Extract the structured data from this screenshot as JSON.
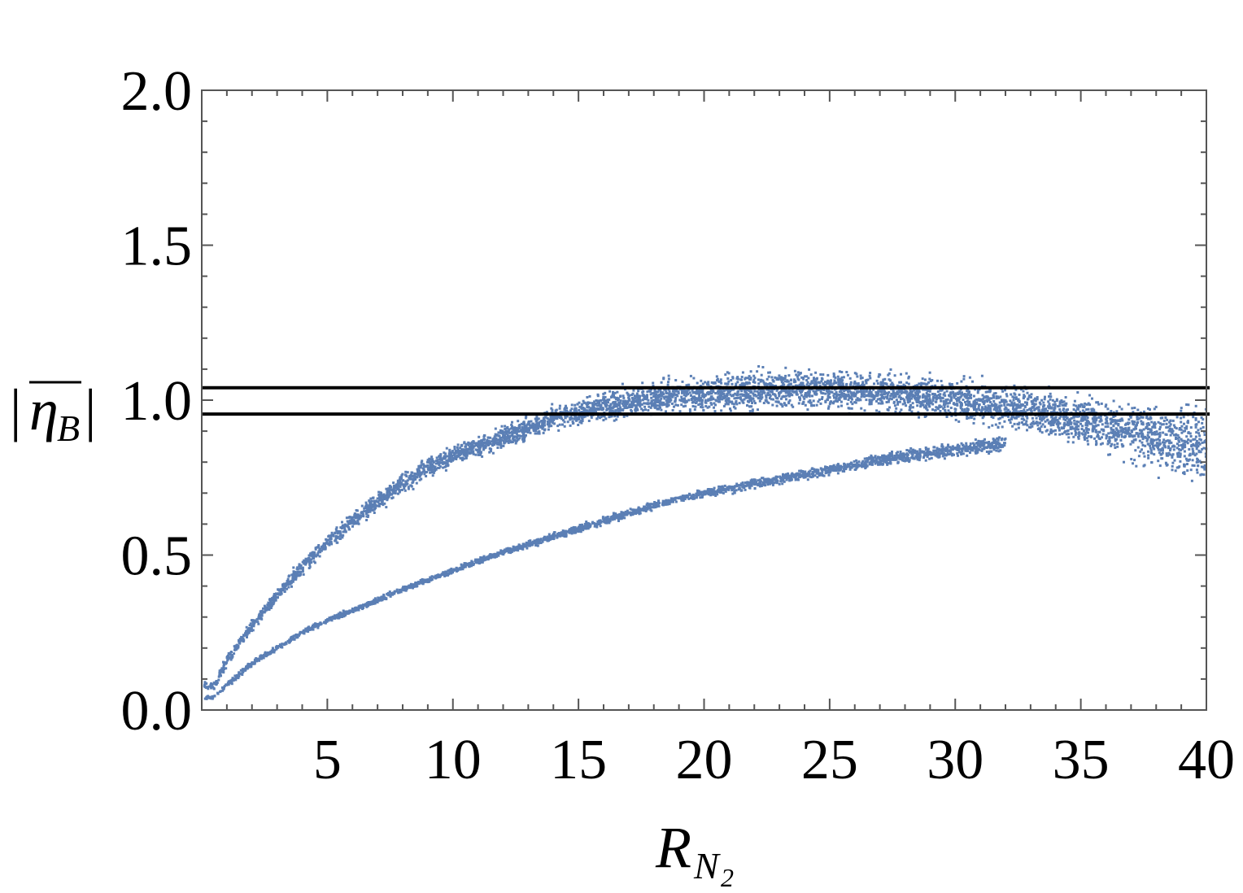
{
  "chart_data": {
    "type": "scatter",
    "title": "",
    "xlabel": "R",
    "xlabel_sub": "N",
    "xlabel_subsub": "2",
    "ylabel": "η",
    "ylabel_sub": "B",
    "xlim": [
      0,
      40
    ],
    "ylim": [
      0,
      2.0
    ],
    "x_ticks": [
      5,
      10,
      15,
      20,
      25,
      30,
      35,
      40
    ],
    "x_tick_labels": [
      "5",
      "10",
      "15",
      "20",
      "25",
      "30",
      "35",
      "40"
    ],
    "y_ticks": [
      0,
      0.5,
      1.0,
      1.5,
      2.0
    ],
    "y_tick_labels": [
      "0.0",
      "0.5",
      "1.0",
      "1.5",
      "2.0"
    ],
    "grid": false,
    "point_color": "#5b7fb5",
    "reference_lines": [
      {
        "y": 1.04,
        "color": "#000000"
      },
      {
        "y": 0.955,
        "color": "#000000"
      }
    ],
    "series": [
      {
        "values_summary": "upper band",
        "x": [
          0.5,
          1,
          2,
          3,
          4,
          5,
          6,
          7,
          8,
          9,
          10,
          12,
          14,
          16,
          18,
          20,
          22,
          24,
          26,
          28,
          30,
          32,
          34,
          36,
          38,
          40
        ],
        "y_center": [
          0.08,
          0.16,
          0.27,
          0.37,
          0.46,
          0.54,
          0.61,
          0.67,
          0.73,
          0.78,
          0.82,
          0.88,
          0.94,
          0.98,
          1.01,
          1.02,
          1.03,
          1.04,
          1.03,
          1.02,
          1.0,
          0.98,
          0.95,
          0.92,
          0.88,
          0.84
        ],
        "y_spread": [
          0.02,
          0.03,
          0.03,
          0.035,
          0.04,
          0.04,
          0.045,
          0.05,
          0.05,
          0.05,
          0.05,
          0.055,
          0.06,
          0.07,
          0.08,
          0.09,
          0.1,
          0.1,
          0.1,
          0.1,
          0.1,
          0.11,
          0.12,
          0.14,
          0.18,
          0.22
        ]
      },
      {
        "values_summary": "lower band",
        "x": [
          0.5,
          1,
          2,
          3,
          4,
          5,
          6,
          8,
          10,
          12,
          14,
          16,
          18,
          20,
          22,
          24,
          26,
          28,
          30,
          32
        ],
        "y_center": [
          0.04,
          0.08,
          0.15,
          0.2,
          0.25,
          0.29,
          0.32,
          0.39,
          0.45,
          0.51,
          0.56,
          0.61,
          0.66,
          0.7,
          0.73,
          0.76,
          0.79,
          0.82,
          0.84,
          0.86
        ],
        "y_spread": [
          0.01,
          0.015,
          0.015,
          0.015,
          0.015,
          0.015,
          0.015,
          0.015,
          0.015,
          0.015,
          0.02,
          0.02,
          0.02,
          0.02,
          0.025,
          0.025,
          0.03,
          0.035,
          0.04,
          0.04
        ]
      }
    ]
  }
}
